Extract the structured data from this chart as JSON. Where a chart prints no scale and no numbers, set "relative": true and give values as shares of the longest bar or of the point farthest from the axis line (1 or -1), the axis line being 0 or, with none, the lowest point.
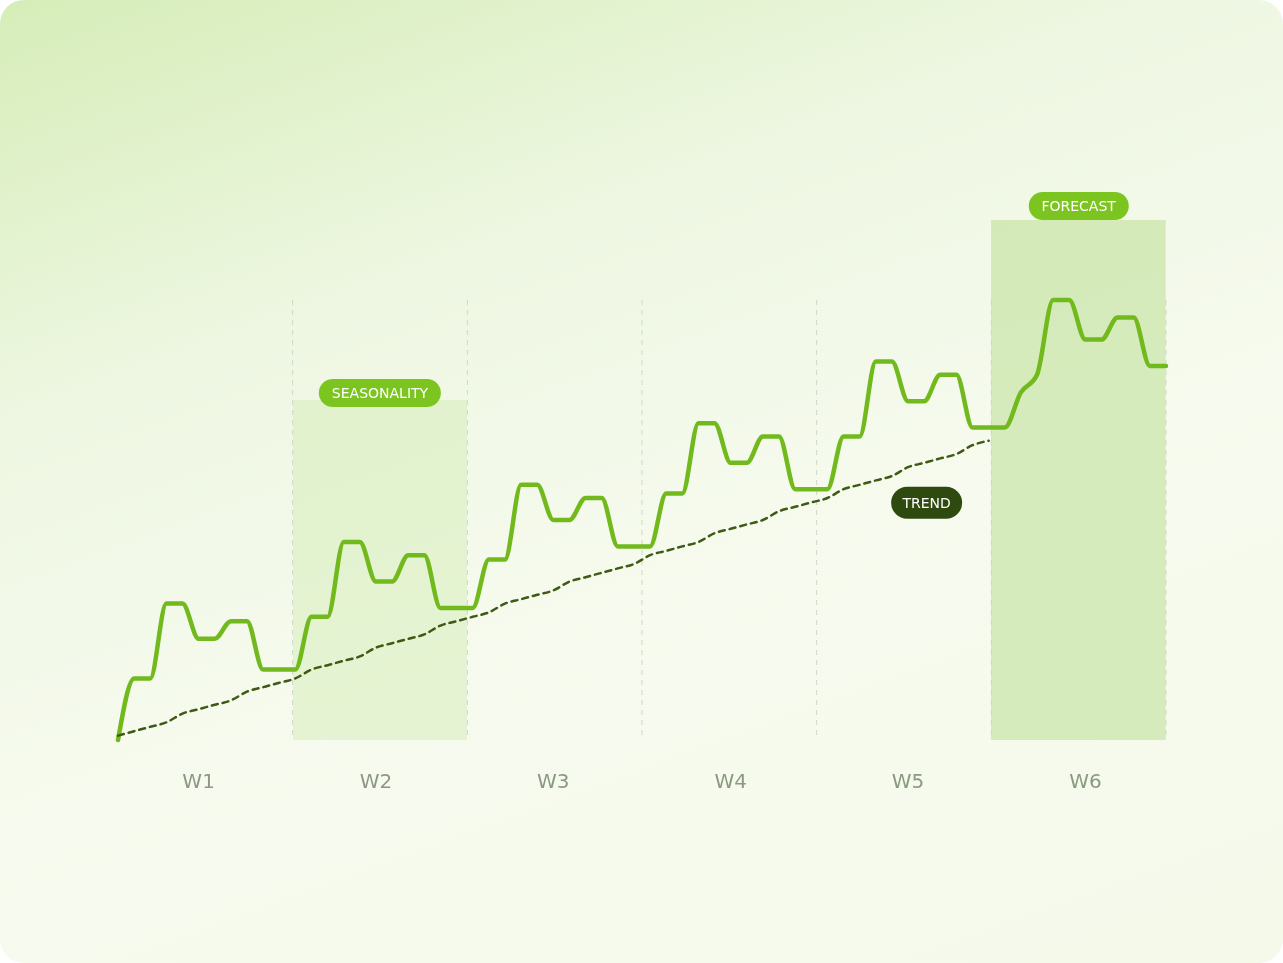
{
  "chart_data": {
    "type": "line",
    "relative": true,
    "categories": [
      null,
      null,
      null,
      null,
      null,
      "W1",
      null,
      null,
      null,
      null,
      null,
      null,
      null,
      null,
      null,
      null,
      "W2",
      null,
      null,
      null,
      null,
      null,
      null,
      null,
      null,
      null,
      null,
      "W3",
      null,
      null,
      null,
      null,
      null,
      null,
      null,
      null,
      null,
      null,
      "W4",
      null,
      null,
      null,
      null,
      null,
      null,
      null,
      null,
      null,
      null,
      "W5",
      null,
      null,
      null,
      null,
      null,
      null,
      null,
      null,
      null,
      null,
      "W6",
      null,
      null,
      null,
      null,
      null
    ],
    "series": [
      {
        "color": "#72b91e",
        "values": [
          0,
          0.14,
          0.14,
          0.31,
          0.31,
          0.23,
          0.23,
          0.27,
          0.27,
          0.16,
          0.16,
          0.16,
          0.28,
          0.28,
          0.45,
          0.45,
          0.36,
          0.36,
          0.42,
          0.42,
          0.3,
          0.3,
          0.3,
          0.41,
          0.41,
          0.58,
          0.58,
          0.5,
          0.5,
          0.55,
          0.55,
          0.44,
          0.44,
          0.44,
          0.56,
          0.56,
          0.72,
          0.72,
          0.63,
          0.63,
          0.69,
          0.69,
          0.57,
          0.57,
          0.57,
          0.69,
          0.69,
          0.86,
          0.86,
          0.77,
          0.77,
          0.83,
          0.83,
          0.71,
          0.71,
          0.71,
          0.79,
          0.83,
          1,
          1,
          0.91,
          0.91,
          0.96,
          0.96,
          0.85,
          0.85
        ]
      },
      {
        "color": "#3f5a14",
        "line_style": "dashed",
        "values": [
          0.01,
          0.02,
          0.03,
          0.04,
          0.06,
          0.07,
          0.08,
          0.09,
          0.11,
          0.12,
          0.13,
          0.14,
          0.16,
          0.17,
          0.18,
          0.19,
          0.21,
          0.22,
          0.23,
          0.24,
          0.26,
          0.27,
          0.28,
          0.29,
          0.31,
          0.32,
          0.33,
          0.34,
          0.36,
          0.37,
          0.38,
          0.39,
          0.4,
          0.42,
          0.43,
          0.44,
          0.45,
          0.47,
          0.48,
          0.49,
          0.5,
          0.52,
          0.53,
          0.54,
          0.55,
          0.57,
          0.58,
          0.59,
          0.6,
          0.62,
          0.63,
          0.64,
          0.65,
          0.67,
          0.68,
          null,
          null,
          null,
          null,
          null,
          null,
          null,
          null,
          null,
          null,
          null
        ]
      }
    ],
    "annotations": [
      "TREND",
      "SEASONALITY",
      "FORECAST"
    ],
    "grid": "x",
    "marker": "none"
  }
}
